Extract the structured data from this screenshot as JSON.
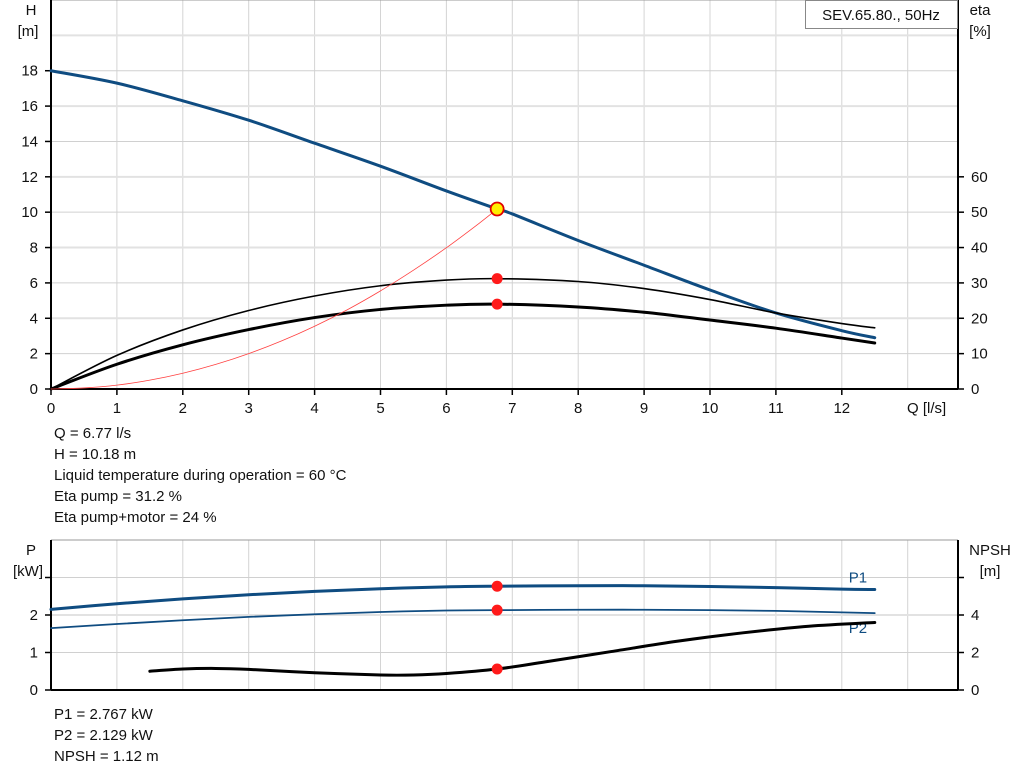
{
  "chart_data": [
    {
      "type": "line",
      "title": "SEV.65.80., 50Hz",
      "xlabel": "Q [l/s]",
      "ylabel": [
        "H",
        "[m]"
      ],
      "y2label": [
        "eta",
        "[%]"
      ],
      "xlim": [
        0,
        13.8
      ],
      "ylim": [
        0,
        22
      ],
      "y2lim": [
        0,
        110
      ],
      "xticks": [
        "0",
        "1",
        "2",
        "3",
        "4",
        "5",
        "6",
        "7",
        "8",
        "9",
        "10",
        "11",
        "12"
      ],
      "yticks": [
        "0",
        "2",
        "4",
        "6",
        "8",
        "10",
        "12",
        "14",
        "16",
        "18"
      ],
      "y2ticks": [
        "0",
        "10",
        "20",
        "30",
        "40",
        "50",
        "60"
      ],
      "grid": true,
      "series": [
        {
          "key": "H",
          "axis": "left",
          "color": "#0f4c81",
          "width": 3,
          "x": [
            0,
            1,
            2,
            3,
            4,
            5,
            6,
            6.77,
            7,
            8,
            9,
            10,
            11,
            12,
            12.5
          ],
          "y": [
            18,
            17.3,
            16.3,
            15.2,
            13.9,
            12.6,
            11.2,
            10.18,
            9.9,
            8.4,
            7.0,
            5.6,
            4.3,
            3.3,
            2.9
          ]
        },
        {
          "key": "eta_pump",
          "axis": "right",
          "color": "#000000",
          "width": 1.6,
          "x": [
            0,
            1,
            2,
            3,
            4,
            5,
            6,
            6.77,
            8,
            9,
            10,
            11,
            12,
            12.5
          ],
          "y": [
            0,
            9.5,
            16.7,
            22.2,
            26.3,
            29.2,
            30.8,
            31.2,
            30.4,
            28.4,
            25.3,
            21.5,
            18.5,
            17.3
          ]
        },
        {
          "key": "eta_pump_motor",
          "axis": "right",
          "color": "#000000",
          "width": 3,
          "x": [
            0,
            1,
            2,
            3,
            4,
            5,
            6,
            6.77,
            8,
            9,
            10,
            11,
            12,
            12.5
          ],
          "y": [
            0,
            7,
            12.5,
            16.8,
            20.2,
            22.5,
            23.7,
            24,
            23.2,
            21.7,
            19.5,
            17.2,
            14.4,
            13
          ]
        },
        {
          "key": "system",
          "axis": "left",
          "color": "#ff4040",
          "width": 0.8,
          "x": [
            0,
            0.5,
            1,
            1.5,
            2,
            2.5,
            3,
            3.5,
            4,
            4.5,
            5,
            5.5,
            6,
            6.5,
            6.77
          ],
          "y": [
            0,
            0.06,
            0.22,
            0.5,
            0.89,
            1.39,
            2.0,
            2.72,
            3.55,
            4.49,
            5.55,
            6.72,
            7.99,
            9.38,
            10.18
          ]
        }
      ],
      "operating_points": [
        {
          "axis": "left",
          "x": 6.77,
          "y": 10.18,
          "style": "yellow"
        },
        {
          "axis": "right",
          "x": 6.77,
          "y": 31.2,
          "style": "red"
        },
        {
          "axis": "right",
          "x": 6.77,
          "y": 24,
          "style": "red"
        }
      ]
    },
    {
      "type": "line",
      "ylabel": [
        "P",
        "[kW]"
      ],
      "y2label": [
        "NPSH",
        "[m]"
      ],
      "xlim": [
        0,
        13.8
      ],
      "ylim": [
        0,
        4
      ],
      "y2lim": [
        0,
        8
      ],
      "yticks": [
        "0",
        "1",
        "2"
      ],
      "y2ticks": [
        "0",
        "2",
        "4"
      ],
      "grid": true,
      "series": [
        {
          "name": "P1",
          "axis": "left",
          "color": "#0f4c81",
          "width": 3,
          "x": [
            0,
            1,
            2,
            3,
            4,
            5,
            6,
            6.77,
            8,
            9,
            10,
            11,
            12,
            12.5
          ],
          "y": [
            2.15,
            2.3,
            2.43,
            2.54,
            2.63,
            2.7,
            2.75,
            2.767,
            2.78,
            2.78,
            2.76,
            2.73,
            2.69,
            2.68
          ]
        },
        {
          "name": "P2",
          "axis": "left",
          "color": "#0f4c81",
          "width": 1.8,
          "x": [
            0,
            1,
            2,
            3,
            4,
            5,
            6,
            6.77,
            8,
            9,
            10,
            11,
            12,
            12.5
          ],
          "y": [
            1.65,
            1.76,
            1.86,
            1.95,
            2.02,
            2.08,
            2.12,
            2.129,
            2.14,
            2.14,
            2.13,
            2.11,
            2.07,
            2.05
          ]
        },
        {
          "key": "NPSH",
          "axis": "right",
          "color": "#000000",
          "width": 3,
          "x": [
            1.5,
            2,
            2.5,
            3,
            4,
            5,
            5.5,
            6,
            6.77,
            7.5,
            8.5,
            9.5,
            10.5,
            11.5,
            12.5
          ],
          "y": [
            1.0,
            1.12,
            1.15,
            1.1,
            0.92,
            0.8,
            0.8,
            0.88,
            1.12,
            1.5,
            2.05,
            2.6,
            3.05,
            3.4,
            3.6
          ]
        }
      ],
      "operating_points": [
        {
          "axis": "left",
          "x": 6.77,
          "y": 2.767,
          "style": "red"
        },
        {
          "axis": "left",
          "x": 6.77,
          "y": 2.129,
          "style": "red"
        },
        {
          "axis": "right",
          "x": 6.77,
          "y": 1.12,
          "style": "red"
        }
      ]
    }
  ],
  "readout_top": [
    "Q = 6.77 l/s",
    "H = 10.18 m",
    "Liquid temperature during operation = 60 °C",
    "Eta pump = 31.2 %",
    "Eta pump+motor = 24 %"
  ],
  "readout_bottom": [
    "P1 = 2.767 kW",
    "P2 = 2.129 kW",
    "NPSH = 1.12 m"
  ]
}
